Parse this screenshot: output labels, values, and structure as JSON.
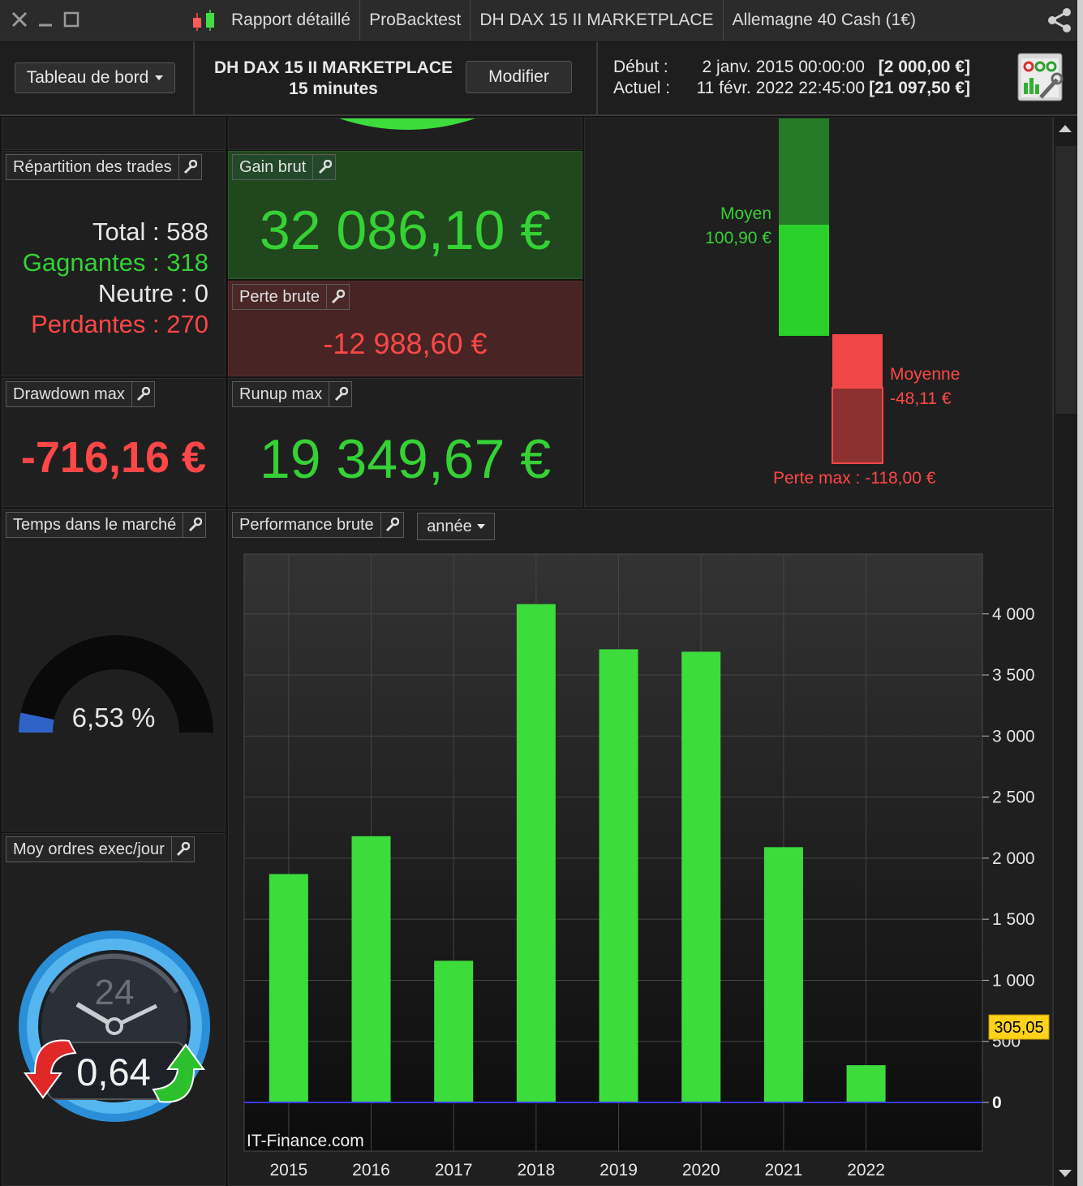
{
  "titlebar": {
    "tabs": [
      "Rapport détaillé",
      "ProBacktest",
      "DH DAX 15 II MARKETPLACE",
      "Allemagne 40 Cash (1€)"
    ]
  },
  "header": {
    "dashboard_label": "Tableau de bord",
    "strategy_name": "DH DAX 15 II MARKETPLACE",
    "timeframe": "15 minutes",
    "modify_label": "Modifier",
    "start_label": "Début :",
    "start_date": "2 janv. 2015 00:00:00",
    "start_amount": "[2 000,00 €]",
    "current_label": "Actuel :",
    "current_date": "11 févr. 2022 22:45:00",
    "current_amount": "[21 097,50 €]"
  },
  "trades": {
    "title": "Répartition des trades",
    "total": "Total : 588",
    "winners": "Gagnantes : 318",
    "neutral": "Neutre : 0",
    "losers": "Perdantes : 270"
  },
  "gross_gain": {
    "title": "Gain brut",
    "value": "32 086,10 €"
  },
  "gross_loss": {
    "title": "Perte brute",
    "value": "-12 988,60 €"
  },
  "drawdown": {
    "title": "Drawdown max",
    "value": "-716,16 €"
  },
  "runup": {
    "title": "Runup max",
    "value": "19 349,67 €"
  },
  "avg_trade": {
    "gain_label": "Moyen",
    "gain_value": "100,90 €",
    "loss_label": "Moyenne",
    "loss_value": "-48,11 €",
    "max_loss": "Perte max : -118,00 €"
  },
  "time_in_market": {
    "title": "Temps dans le marché",
    "value": "6,53 %",
    "fraction": 0.0653
  },
  "orders": {
    "title": "Moy ordres exec/jour",
    "value": "0,64",
    "clock_label": "24"
  },
  "performance": {
    "title": "Performance brute",
    "period": "année",
    "watermark": "IT-Finance.com",
    "last_value_tag": "305,05"
  },
  "chart_data": {
    "type": "bar",
    "categories": [
      "2015",
      "2016",
      "2017",
      "2018",
      "2019",
      "2020",
      "2021",
      "2022"
    ],
    "values": [
      1870,
      2180,
      1160,
      4080,
      3710,
      3690,
      2090,
      305.05
    ],
    "ylim": [
      0,
      4450
    ],
    "yticks": [
      0,
      500,
      1000,
      1500,
      2000,
      2500,
      3000,
      3500,
      4000
    ],
    "ytick_labels": [
      "0",
      "500",
      "1 000",
      "1 500",
      "2 000",
      "2 500",
      "3 000",
      "3 500",
      "4 000"
    ],
    "grid": true,
    "colors": {
      "bar": "#3ddc3d",
      "zero_line": "#3a3aff"
    }
  }
}
